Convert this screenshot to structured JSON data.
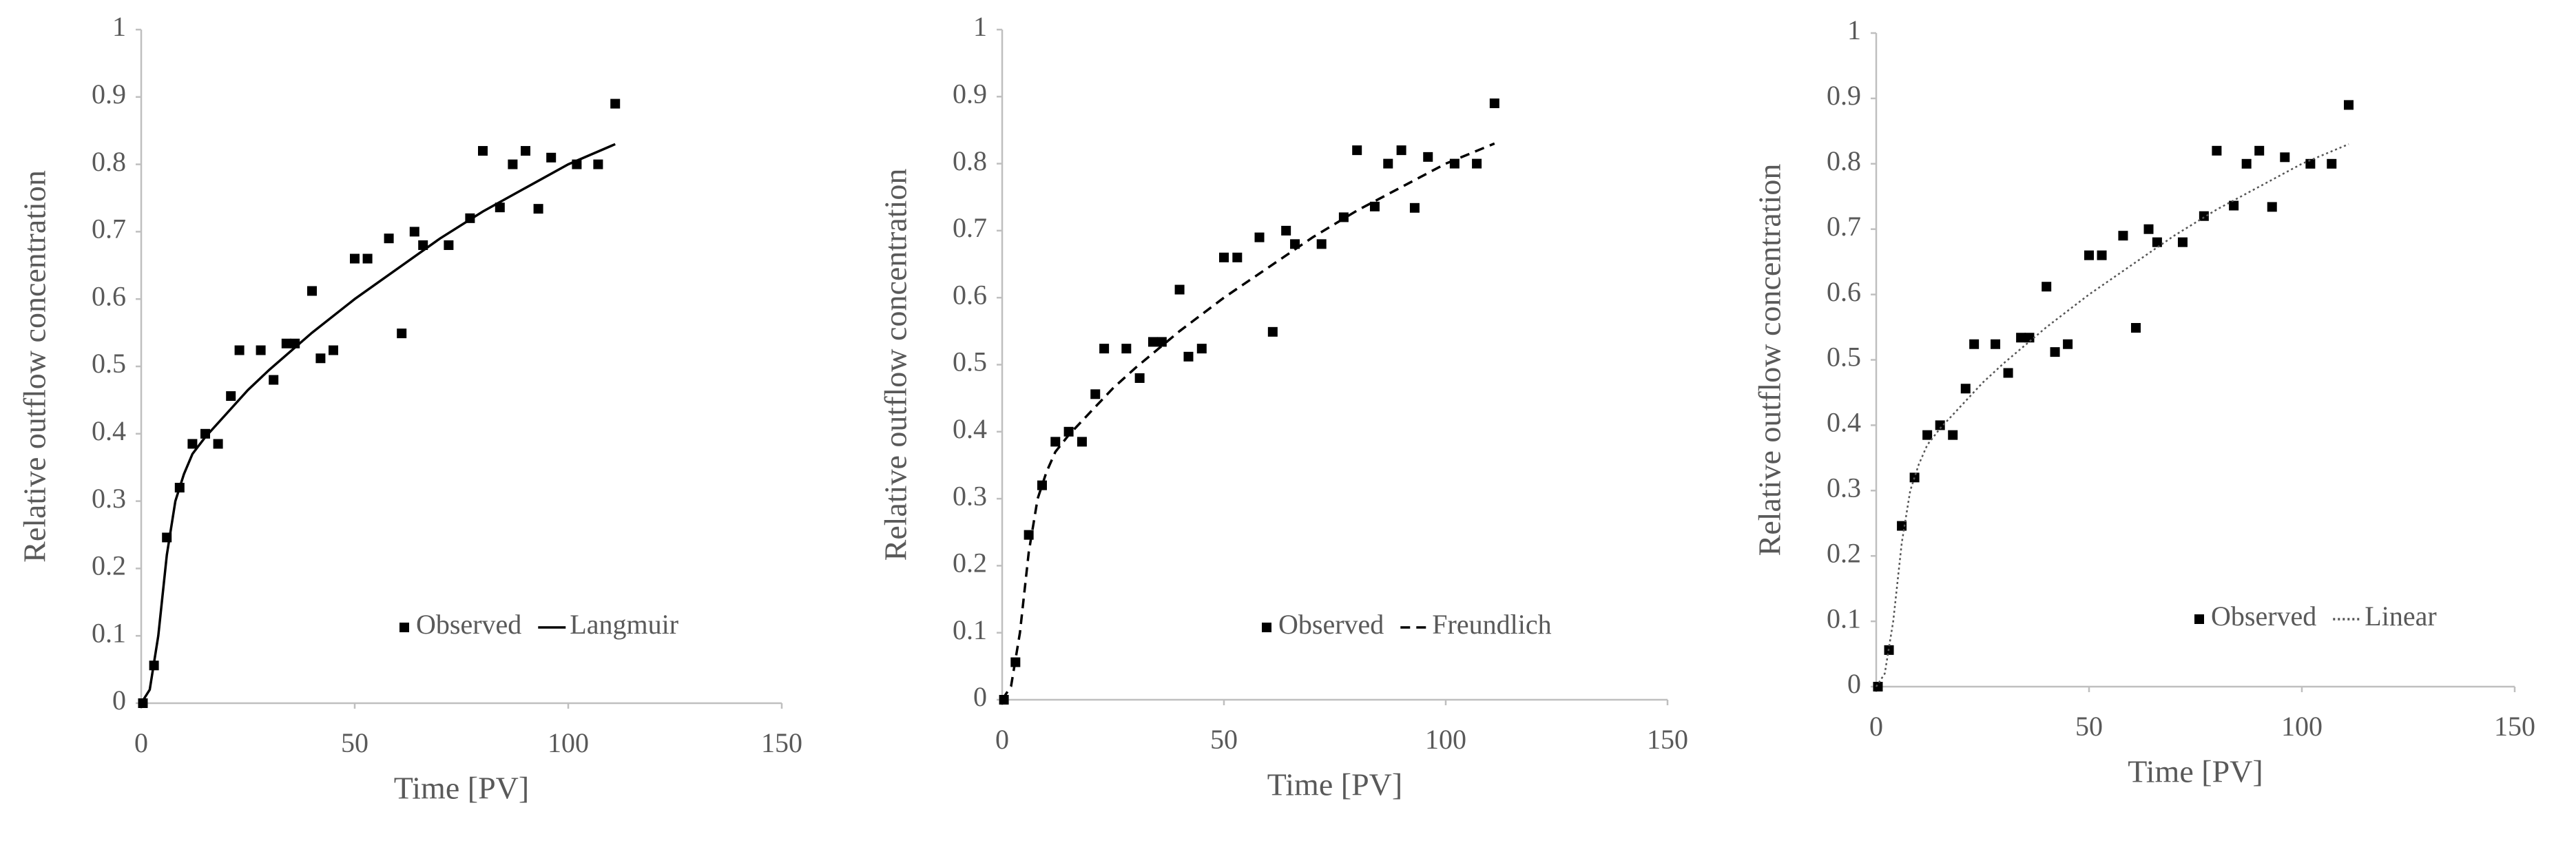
{
  "chart_data": [
    {
      "type": "scatter",
      "x_label": "Time [PV]",
      "y_label": "Relative outflow concentration",
      "xlim": [
        0,
        150
      ],
      "ylim": [
        0,
        1
      ],
      "xticks": [
        0,
        50,
        100,
        150
      ],
      "yticks": [
        0,
        0.1,
        0.2,
        0.3,
        0.4,
        0.5,
        0.6,
        0.7,
        0.8,
        0.9,
        1
      ],
      "series": [
        {
          "name": "Observed",
          "color": "#000000",
          "mode": "markers",
          "x": [
            0.4,
            3,
            6,
            9,
            12,
            15,
            18,
            21,
            23,
            28,
            31,
            34,
            36,
            40,
            42,
            45,
            50,
            53,
            58,
            61,
            64,
            66,
            72,
            77,
            80,
            84,
            87,
            90,
            93,
            96,
            102,
            107,
            111
          ],
          "values": [
            0,
            0.056,
            0.246,
            0.32,
            0.385,
            0.4,
            0.385,
            0.456,
            0.524,
            0.524,
            0.48,
            0.534,
            0.534,
            0.612,
            0.512,
            0.524,
            0.66,
            0.66,
            0.69,
            0.549,
            0.7,
            0.68,
            0.68,
            0.72,
            0.82,
            0.736,
            0.8,
            0.82,
            0.734,
            0.81,
            0.8,
            0.8,
            0.89
          ]
        },
        {
          "name": "Langmuir",
          "color": "#000000",
          "mode": "line",
          "line_style": "solid",
          "x": [
            0,
            2,
            4,
            6,
            8,
            10,
            12,
            15,
            20,
            25,
            30,
            40,
            50,
            60,
            70,
            80,
            90,
            100,
            111
          ],
          "values": [
            0,
            0.02,
            0.1,
            0.22,
            0.3,
            0.34,
            0.37,
            0.395,
            0.43,
            0.465,
            0.495,
            0.55,
            0.6,
            0.645,
            0.69,
            0.73,
            0.765,
            0.8,
            0.83
          ]
        }
      ]
    },
    {
      "type": "scatter",
      "x_label": "Time [PV]",
      "y_label": "Relative outflow concentration",
      "xlim": [
        0,
        150
      ],
      "ylim": [
        0,
        1
      ],
      "xticks": [
        0,
        50,
        100,
        150
      ],
      "yticks": [
        0,
        0.1,
        0.2,
        0.3,
        0.4,
        0.5,
        0.6,
        0.7,
        0.8,
        0.9,
        1
      ],
      "series": [
        {
          "name": "Observed",
          "color": "#000000",
          "mode": "markers",
          "x": [
            0.4,
            3,
            6,
            9,
            12,
            15,
            18,
            21,
            23,
            28,
            31,
            34,
            36,
            40,
            42,
            45,
            50,
            53,
            58,
            61,
            64,
            66,
            72,
            77,
            80,
            84,
            87,
            90,
            93,
            96,
            102,
            107,
            111
          ],
          "values": [
            0,
            0.056,
            0.246,
            0.32,
            0.385,
            0.4,
            0.385,
            0.456,
            0.524,
            0.524,
            0.48,
            0.534,
            0.534,
            0.612,
            0.512,
            0.524,
            0.66,
            0.66,
            0.69,
            0.549,
            0.7,
            0.68,
            0.68,
            0.72,
            0.82,
            0.736,
            0.8,
            0.82,
            0.734,
            0.81,
            0.8,
            0.8,
            0.89
          ]
        },
        {
          "name": "Freundlich",
          "color": "#000000",
          "mode": "line",
          "line_style": "dashed",
          "x": [
            0,
            2,
            4,
            6,
            8,
            10,
            12,
            15,
            20,
            25,
            30,
            40,
            50,
            60,
            70,
            80,
            90,
            100,
            111
          ],
          "values": [
            0,
            0.02,
            0.1,
            0.22,
            0.3,
            0.34,
            0.37,
            0.395,
            0.43,
            0.465,
            0.495,
            0.55,
            0.6,
            0.645,
            0.69,
            0.73,
            0.765,
            0.8,
            0.83
          ]
        }
      ]
    },
    {
      "type": "scatter",
      "x_label": "Time [PV]",
      "y_label": "Relative outflow concentration",
      "xlim": [
        0,
        150
      ],
      "ylim": [
        0,
        1
      ],
      "xticks": [
        0,
        50,
        100,
        150
      ],
      "yticks": [
        0,
        0.1,
        0.2,
        0.3,
        0.4,
        0.5,
        0.6,
        0.7,
        0.8,
        0.9,
        1
      ],
      "series": [
        {
          "name": "Observed",
          "color": "#000000",
          "mode": "markers",
          "x": [
            0.4,
            3,
            6,
            9,
            12,
            15,
            18,
            21,
            23,
            28,
            31,
            34,
            36,
            40,
            42,
            45,
            50,
            53,
            58,
            61,
            64,
            66,
            72,
            77,
            80,
            84,
            87,
            90,
            93,
            96,
            102,
            107,
            111
          ],
          "values": [
            0,
            0.056,
            0.246,
            0.32,
            0.385,
            0.4,
            0.385,
            0.456,
            0.524,
            0.524,
            0.48,
            0.534,
            0.534,
            0.612,
            0.512,
            0.524,
            0.66,
            0.66,
            0.69,
            0.549,
            0.7,
            0.68,
            0.68,
            0.72,
            0.82,
            0.736,
            0.8,
            0.82,
            0.734,
            0.81,
            0.8,
            0.8,
            0.89
          ]
        },
        {
          "name": "Linear",
          "color": "#555555",
          "mode": "line",
          "line_style": "dotted",
          "x": [
            0,
            2,
            4,
            6,
            8,
            10,
            12,
            15,
            20,
            25,
            30,
            40,
            50,
            60,
            70,
            80,
            90,
            100,
            111
          ],
          "values": [
            0,
            0.02,
            0.1,
            0.22,
            0.3,
            0.34,
            0.37,
            0.395,
            0.43,
            0.465,
            0.495,
            0.55,
            0.6,
            0.645,
            0.69,
            0.73,
            0.765,
            0.8,
            0.83
          ]
        }
      ]
    }
  ]
}
